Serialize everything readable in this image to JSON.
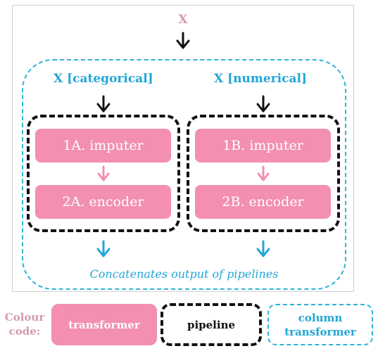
{
  "diagram": {
    "input_label": "X",
    "branch_a": {
      "input_label": "X [categorical]",
      "step1": "1A. imputer",
      "step2": "2A. encoder"
    },
    "branch_b": {
      "input_label": "X [numerical]",
      "step1": "1B. imputer",
      "step2": "2B. encoder"
    },
    "concat_note": "Concatenates output of pipelines"
  },
  "legend": {
    "title_line1": "Colour",
    "title_line2": "code:",
    "transformer": "transformer",
    "pipeline": "pipeline",
    "column_transformer_line1": "column",
    "column_transformer_line2": "transformer"
  },
  "colors": {
    "transformer_fill": "#f28fb2",
    "pipeline_border": "#111111",
    "column_transformer_border": "#2bb3d8",
    "label_blue": "#22a6d6",
    "label_pink": "#d49ab0"
  },
  "icons": {
    "arrow": "arrow-down-icon"
  }
}
